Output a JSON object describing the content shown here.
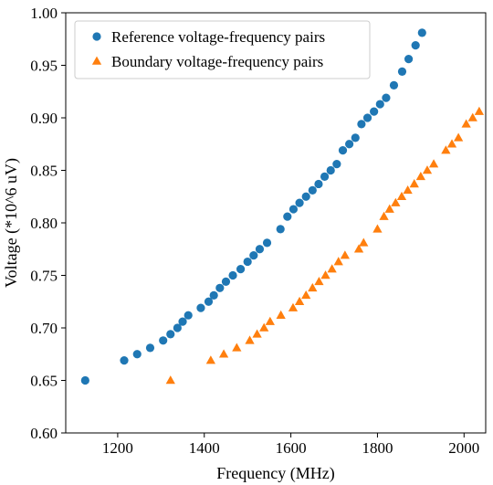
{
  "chart_data": {
    "type": "scatter",
    "title": "",
    "xlabel": "Frequency (MHz)",
    "ylabel": "Voltage (*10^6 uV)",
    "xlim": [
      1080,
      2050
    ],
    "ylim": [
      0.6,
      1.0
    ],
    "xticks": [
      1200,
      1400,
      1600,
      1800,
      2000
    ],
    "yticks": [
      0.6,
      0.65,
      0.7,
      0.75,
      0.8,
      0.85,
      0.9,
      0.95,
      1.0
    ],
    "xtick_labels": [
      "1200",
      "1400",
      "1600",
      "1800",
      "2000"
    ],
    "ytick_labels": [
      "0.60",
      "0.65",
      "0.70",
      "0.75",
      "0.80",
      "0.85",
      "0.90",
      "0.95",
      "1.00"
    ],
    "grid": false,
    "legend_position": "top-left",
    "series": [
      {
        "name": "Reference voltage-frequency  pairs",
        "marker": "circle",
        "color": "#1f77b4",
        "points": [
          [
            1125,
            0.65
          ],
          [
            1215,
            0.669
          ],
          [
            1245,
            0.675
          ],
          [
            1275,
            0.681
          ],
          [
            1305,
            0.688
          ],
          [
            1322,
            0.694
          ],
          [
            1338,
            0.7
          ],
          [
            1350,
            0.706
          ],
          [
            1363,
            0.712
          ],
          [
            1392,
            0.719
          ],
          [
            1410,
            0.725
          ],
          [
            1422,
            0.731
          ],
          [
            1436,
            0.738
          ],
          [
            1450,
            0.744
          ],
          [
            1466,
            0.75
          ],
          [
            1484,
            0.756
          ],
          [
            1500,
            0.763
          ],
          [
            1514,
            0.769
          ],
          [
            1528,
            0.775
          ],
          [
            1545,
            0.781
          ],
          [
            1576,
            0.794
          ],
          [
            1592,
            0.806
          ],
          [
            1606,
            0.813
          ],
          [
            1620,
            0.819
          ],
          [
            1635,
            0.825
          ],
          [
            1650,
            0.831
          ],
          [
            1664,
            0.837
          ],
          [
            1678,
            0.844
          ],
          [
            1692,
            0.85
          ],
          [
            1706,
            0.856
          ],
          [
            1720,
            0.869
          ],
          [
            1735,
            0.875
          ],
          [
            1749,
            0.881
          ],
          [
            1763,
            0.894
          ],
          [
            1777,
            0.9
          ],
          [
            1792,
            0.906
          ],
          [
            1806,
            0.913
          ],
          [
            1820,
            0.919
          ],
          [
            1838,
            0.931
          ],
          [
            1857,
            0.944
          ],
          [
            1872,
            0.956
          ],
          [
            1888,
            0.969
          ],
          [
            1903,
            0.981
          ]
        ]
      },
      {
        "name": "Boundary voltage-frequency pairs",
        "marker": "triangle",
        "color": "#ff7f0e",
        "points": [
          [
            1322,
            0.65
          ],
          [
            1415,
            0.669
          ],
          [
            1445,
            0.675
          ],
          [
            1475,
            0.681
          ],
          [
            1505,
            0.688
          ],
          [
            1522,
            0.694
          ],
          [
            1538,
            0.7
          ],
          [
            1552,
            0.706
          ],
          [
            1577,
            0.712
          ],
          [
            1605,
            0.719
          ],
          [
            1620,
            0.725
          ],
          [
            1635,
            0.731
          ],
          [
            1650,
            0.738
          ],
          [
            1665,
            0.744
          ],
          [
            1680,
            0.75
          ],
          [
            1695,
            0.756
          ],
          [
            1710,
            0.763
          ],
          [
            1725,
            0.769
          ],
          [
            1757,
            0.775
          ],
          [
            1768,
            0.781
          ],
          [
            1800,
            0.794
          ],
          [
            1815,
            0.806
          ],
          [
            1828,
            0.813
          ],
          [
            1842,
            0.819
          ],
          [
            1856,
            0.825
          ],
          [
            1870,
            0.831
          ],
          [
            1885,
            0.837
          ],
          [
            1900,
            0.844
          ],
          [
            1915,
            0.85
          ],
          [
            1930,
            0.856
          ],
          [
            1958,
            0.869
          ],
          [
            1972,
            0.875
          ],
          [
            1987,
            0.881
          ],
          [
            2005,
            0.894
          ],
          [
            2020,
            0.9
          ],
          [
            2035,
            0.906
          ]
        ]
      }
    ]
  }
}
